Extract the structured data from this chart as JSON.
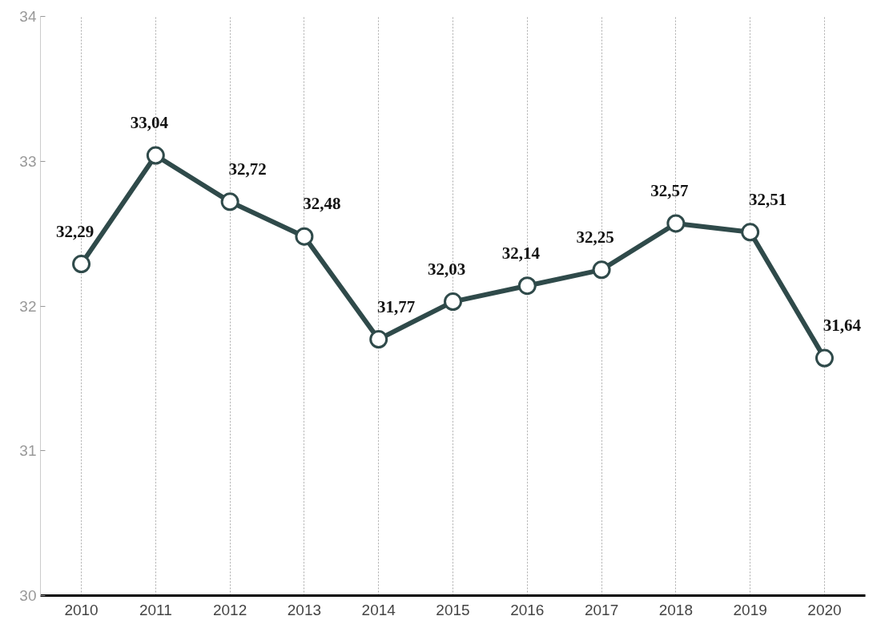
{
  "chart_data": {
    "type": "line",
    "categories": [
      "2010",
      "2011",
      "2012",
      "2013",
      "2014",
      "2015",
      "2016",
      "2017",
      "2018",
      "2019",
      "2020"
    ],
    "series": [
      {
        "color": "#2f4a4a",
        "values": [
          32.29,
          33.04,
          32.72,
          32.48,
          31.77,
          32.03,
          32.14,
          32.25,
          32.57,
          32.51,
          31.64
        ],
        "value_labels": [
          "32,29",
          "33,04",
          "32,72",
          "32,48",
          "31,77",
          "32,03",
          "32,14",
          "32,25",
          "32,57",
          "32,51",
          "31,64"
        ]
      }
    ],
    "ylim": [
      30,
      34
    ],
    "yticks": [
      30,
      31,
      32,
      33,
      34
    ],
    "grid": "x",
    "marker": "circle",
    "line_style": "solid"
  }
}
